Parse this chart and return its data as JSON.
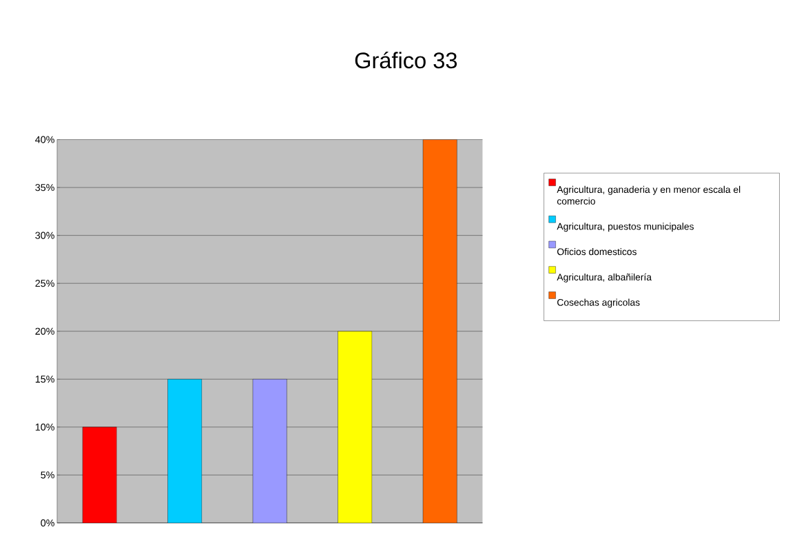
{
  "chart_data": {
    "type": "bar",
    "title": "Gráfico 33",
    "categories": [
      null,
      null,
      null,
      null,
      null
    ],
    "series": [
      {
        "name": "Agricultura, ganaderia y en menor escala el comercio",
        "color": "#ff0000",
        "values": [
          10,
          null,
          null,
          null,
          null
        ]
      },
      {
        "name": "Agricultura, puestos municipales",
        "color": "#00ccff",
        "values": [
          null,
          15,
          null,
          null,
          null
        ]
      },
      {
        "name": "Oficios domesticos",
        "color": "#9999ff",
        "values": [
          null,
          null,
          15,
          null,
          null
        ]
      },
      {
        "name": "Agricultura, albañilería",
        "color": "#ffff00",
        "values": [
          null,
          null,
          null,
          20,
          null
        ]
      },
      {
        "name": "Cosechas agricolas",
        "color": "#ff6600",
        "values": [
          null,
          null,
          null,
          null,
          40
        ]
      }
    ],
    "ylim": [
      0,
      40
    ],
    "yticks": [
      {
        "value": 0,
        "label": "0%"
      },
      {
        "value": 5,
        "label": "5%"
      },
      {
        "value": 10,
        "label": "10%"
      },
      {
        "value": 15,
        "label": "15%"
      },
      {
        "value": 20,
        "label": "20%"
      },
      {
        "value": 25,
        "label": "25%"
      },
      {
        "value": 30,
        "label": "30%"
      },
      {
        "value": 35,
        "label": "35%"
      },
      {
        "value": 40,
        "label": "40%"
      }
    ],
    "grid": "y",
    "legend": "right"
  }
}
